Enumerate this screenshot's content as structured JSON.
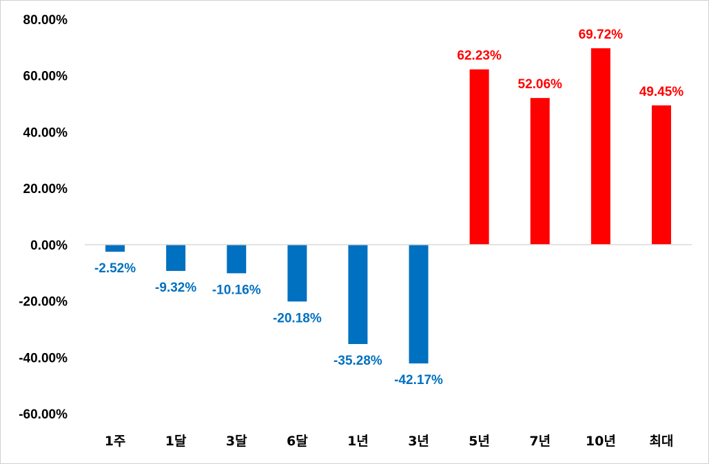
{
  "chart_data": {
    "type": "bar",
    "title": "",
    "xlabel": "",
    "ylabel": "",
    "categories": [
      "1주",
      "1달",
      "3달",
      "6달",
      "1년",
      "3년",
      "5년",
      "7년",
      "10년",
      "최대"
    ],
    "values": [
      -2.52,
      -9.32,
      -10.16,
      -20.18,
      -35.28,
      -42.17,
      62.23,
      52.06,
      69.72,
      49.45
    ],
    "data_labels": [
      "-2.52%",
      "-9.32%",
      "-10.16%",
      "-20.18%",
      "-35.28%",
      "-42.17%",
      "62.23%",
      "52.06%",
      "69.72%",
      "49.45%"
    ],
    "ylim": [
      -60,
      80
    ],
    "yticks": [
      80,
      60,
      40,
      20,
      0,
      -20,
      -40,
      -60
    ],
    "ytick_labels": [
      "80.00%",
      "60.00%",
      "40.00%",
      "20.00%",
      "0.00%",
      "-20.00%",
      "-40.00%",
      "-60.00%"
    ],
    "grid": false,
    "legend": "none",
    "colors": {
      "negative": "#0070C0",
      "positive": "#FF0000",
      "axis": "#D9D9D9",
      "text": "#000000"
    }
  }
}
